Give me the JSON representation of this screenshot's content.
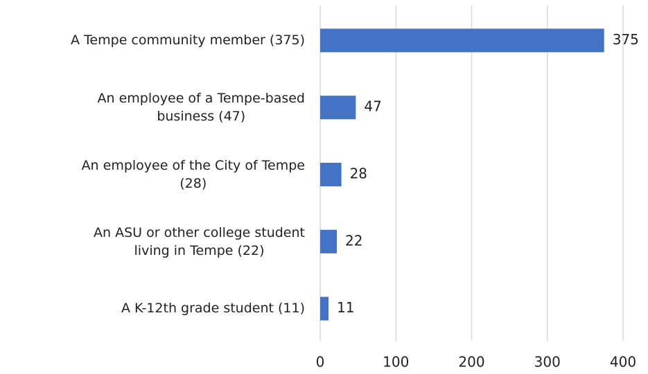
{
  "chart_data": {
    "type": "bar",
    "orientation": "horizontal",
    "categories": [
      "A Tempe community member (375)",
      "An employee of a Tempe-based\nbusiness (47)",
      "An employee of the City of Tempe\n(28)",
      "An ASU or other college student\nliving in Tempe (22)",
      "A K-12th grade student (11)"
    ],
    "values": [
      375,
      47,
      28,
      22,
      11
    ],
    "color": "#4472c4",
    "xlim": [
      0,
      400
    ],
    "xticks": [
      0,
      100,
      200,
      300,
      400
    ],
    "grid": true
  }
}
